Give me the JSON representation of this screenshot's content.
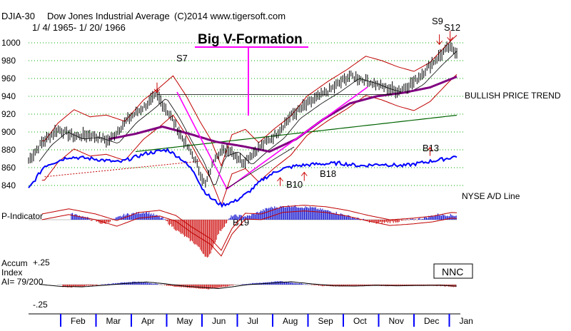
{
  "header": {
    "symbol": "DJIA-30",
    "name": "Dow Jones Industrial Average",
    "copyright": "(C)2014 www.tigersoft.com",
    "date_range": "1/ 4/ 1965- 1/ 20/ 1966"
  },
  "panels": {
    "p_indicator_label": "P-Indicator",
    "accum_label_1": "Accum",
    "accum_label_2": "Index",
    "accum_label_3": "AI= 79/200",
    "accum_top": "+.25",
    "accum_bottom": "-.25"
  },
  "annotations": {
    "big_v": "Big V-Formation",
    "bullish_trend": "BULLISH PRICE TREND",
    "nyse_ad": "NYSE A/D Line",
    "nnc": "NNC"
  },
  "colors": {
    "price_bars": "#000000",
    "ad_line": "#0000ff",
    "ma_purple": "#800080",
    "band_red": "#c00000",
    "ma_green": "#006400",
    "v_magenta": "#ff00ff",
    "p_pos": "#0000cc",
    "p_neg": "#cc0000",
    "grid": "#00aa00"
  },
  "chart_data": {
    "type": "line",
    "title": "DJIA-30 Dow Jones Industrial Average",
    "y_ticks": [
      840,
      860,
      880,
      900,
      920,
      940,
      960,
      980,
      1000
    ],
    "ylim": [
      830,
      1010
    ],
    "months": [
      "Feb",
      "Mar",
      "Apr",
      "May",
      "Jun",
      "Jul",
      "Aug",
      "Sep",
      "Oct",
      "Nov",
      "Dec",
      "Jan"
    ],
    "price_anchors": [
      {
        "t": 0.0,
        "y": 868
      },
      {
        "t": 0.5,
        "y": 888
      },
      {
        "t": 1.1,
        "y": 903
      },
      {
        "t": 1.7,
        "y": 895
      },
      {
        "t": 2.3,
        "y": 897
      },
      {
        "t": 3.0,
        "y": 890
      },
      {
        "t": 3.7,
        "y": 914
      },
      {
        "t": 4.3,
        "y": 928
      },
      {
        "t": 4.8,
        "y": 941
      },
      {
        "t": 5.3,
        "y": 918
      },
      {
        "t": 5.8,
        "y": 890
      },
      {
        "t": 6.2,
        "y": 870
      },
      {
        "t": 6.6,
        "y": 840
      },
      {
        "t": 7.0,
        "y": 875
      },
      {
        "t": 7.5,
        "y": 881
      },
      {
        "t": 8.0,
        "y": 866
      },
      {
        "t": 8.6,
        "y": 882
      },
      {
        "t": 9.2,
        "y": 896
      },
      {
        "t": 9.8,
        "y": 918
      },
      {
        "t": 10.6,
        "y": 935
      },
      {
        "t": 11.3,
        "y": 948
      },
      {
        "t": 12.0,
        "y": 963
      },
      {
        "t": 12.6,
        "y": 958
      },
      {
        "t": 13.2,
        "y": 951
      },
      {
        "t": 13.8,
        "y": 946
      },
      {
        "t": 14.4,
        "y": 956
      },
      {
        "t": 15.1,
        "y": 978
      },
      {
        "t": 15.7,
        "y": 995
      },
      {
        "t": 16.0,
        "y": 990
      }
    ],
    "ad_anchors": [
      {
        "t": 0.0,
        "y": 836
      },
      {
        "t": 0.6,
        "y": 862
      },
      {
        "t": 1.5,
        "y": 872
      },
      {
        "t": 2.4,
        "y": 870
      },
      {
        "t": 3.4,
        "y": 866
      },
      {
        "t": 4.4,
        "y": 876
      },
      {
        "t": 5.2,
        "y": 880
      },
      {
        "t": 5.7,
        "y": 870
      },
      {
        "t": 6.2,
        "y": 855
      },
      {
        "t": 6.5,
        "y": 836
      },
      {
        "t": 6.8,
        "y": 826
      },
      {
        "t": 7.2,
        "y": 818
      },
      {
        "t": 7.7,
        "y": 822
      },
      {
        "t": 8.2,
        "y": 832
      },
      {
        "t": 8.8,
        "y": 848
      },
      {
        "t": 9.4,
        "y": 858
      },
      {
        "t": 10.0,
        "y": 862
      },
      {
        "t": 10.8,
        "y": 864
      },
      {
        "t": 11.6,
        "y": 865
      },
      {
        "t": 12.4,
        "y": 862
      },
      {
        "t": 13.2,
        "y": 864
      },
      {
        "t": 14.0,
        "y": 862
      },
      {
        "t": 14.8,
        "y": 866
      },
      {
        "t": 15.6,
        "y": 870
      },
      {
        "t": 16.0,
        "y": 873
      }
    ],
    "ma_anchors": [
      {
        "t": 3.0,
        "y": 892
      },
      {
        "t": 4.0,
        "y": 898
      },
      {
        "t": 5.0,
        "y": 906
      },
      {
        "t": 6.0,
        "y": 898
      },
      {
        "t": 7.0,
        "y": 889
      },
      {
        "t": 8.0,
        "y": 884
      },
      {
        "t": 9.0,
        "y": 878
      },
      {
        "t": 10.0,
        "y": 892
      },
      {
        "t": 11.0,
        "y": 914
      },
      {
        "t": 12.0,
        "y": 932
      },
      {
        "t": 13.0,
        "y": 940
      },
      {
        "t": 14.0,
        "y": 944
      },
      {
        "t": 15.0,
        "y": 950
      },
      {
        "t": 16.0,
        "y": 962
      }
    ],
    "p_indicator": [
      {
        "t": 0.0,
        "v": 0.2
      },
      {
        "t": 1.0,
        "v": 0.55
      },
      {
        "t": 2.0,
        "v": 0.2
      },
      {
        "t": 2.8,
        "v": -0.25
      },
      {
        "t": 3.6,
        "v": 0.3
      },
      {
        "t": 4.4,
        "v": 0.45
      },
      {
        "t": 5.0,
        "v": 0.1
      },
      {
        "t": 5.6,
        "v": -0.7
      },
      {
        "t": 6.3,
        "v": -1.5
      },
      {
        "t": 6.7,
        "v": -2.3
      },
      {
        "t": 7.1,
        "v": -0.8
      },
      {
        "t": 7.6,
        "v": 0.25
      },
      {
        "t": 8.2,
        "v": 0.2
      },
      {
        "t": 9.0,
        "v": 0.7
      },
      {
        "t": 9.8,
        "v": 0.8
      },
      {
        "t": 10.6,
        "v": 0.7
      },
      {
        "t": 11.4,
        "v": 0.45
      },
      {
        "t": 12.2,
        "v": 0.1
      },
      {
        "t": 13.0,
        "v": -0.2
      },
      {
        "t": 13.8,
        "v": -0.1
      },
      {
        "t": 14.6,
        "v": 0.05
      },
      {
        "t": 15.3,
        "v": 0.3
      },
      {
        "t": 16.0,
        "v": 0.25
      }
    ],
    "accum_index": [
      {
        "t": 0.0,
        "v": 0.02
      },
      {
        "t": 0.8,
        "v": -0.12
      },
      {
        "t": 1.6,
        "v": -0.15
      },
      {
        "t": 2.4,
        "v": -0.05
      },
      {
        "t": 3.2,
        "v": 0.08
      },
      {
        "t": 4.0,
        "v": 0.18
      },
      {
        "t": 4.6,
        "v": 0.08
      },
      {
        "t": 5.4,
        "v": -0.1
      },
      {
        "t": 6.2,
        "v": -0.2
      },
      {
        "t": 6.7,
        "v": -0.27
      },
      {
        "t": 7.2,
        "v": -0.15
      },
      {
        "t": 7.8,
        "v": 0.0
      },
      {
        "t": 8.6,
        "v": 0.1
      },
      {
        "t": 9.4,
        "v": 0.2
      },
      {
        "t": 10.2,
        "v": 0.05
      },
      {
        "t": 11.0,
        "v": -0.08
      },
      {
        "t": 11.8,
        "v": -0.1
      },
      {
        "t": 12.6,
        "v": -0.05
      },
      {
        "t": 13.4,
        "v": -0.08
      },
      {
        "t": 14.2,
        "v": -0.06
      },
      {
        "t": 15.0,
        "v": -0.05
      },
      {
        "t": 15.6,
        "v": -0.1
      },
      {
        "t": 16.0,
        "v": -0.14
      }
    ],
    "signals": [
      {
        "label": "S7",
        "t": 4.8,
        "y": 941,
        "dir": "down"
      },
      {
        "label": "S9",
        "t": 15.35,
        "y": 995,
        "dir": "down"
      },
      {
        "label": "S12",
        "t": 15.75,
        "y": 999,
        "dir": "down"
      },
      {
        "label": "B10",
        "t": 9.4,
        "y": 852,
        "dir": "up"
      },
      {
        "label": "B18",
        "t": 10.3,
        "y": 858,
        "dir": "up"
      },
      {
        "label": "B13",
        "t": 15.0,
        "y": 886,
        "dir": "up"
      },
      {
        "label": "B19",
        "t": 6.9,
        "y": 0,
        "dir": "up"
      }
    ]
  }
}
